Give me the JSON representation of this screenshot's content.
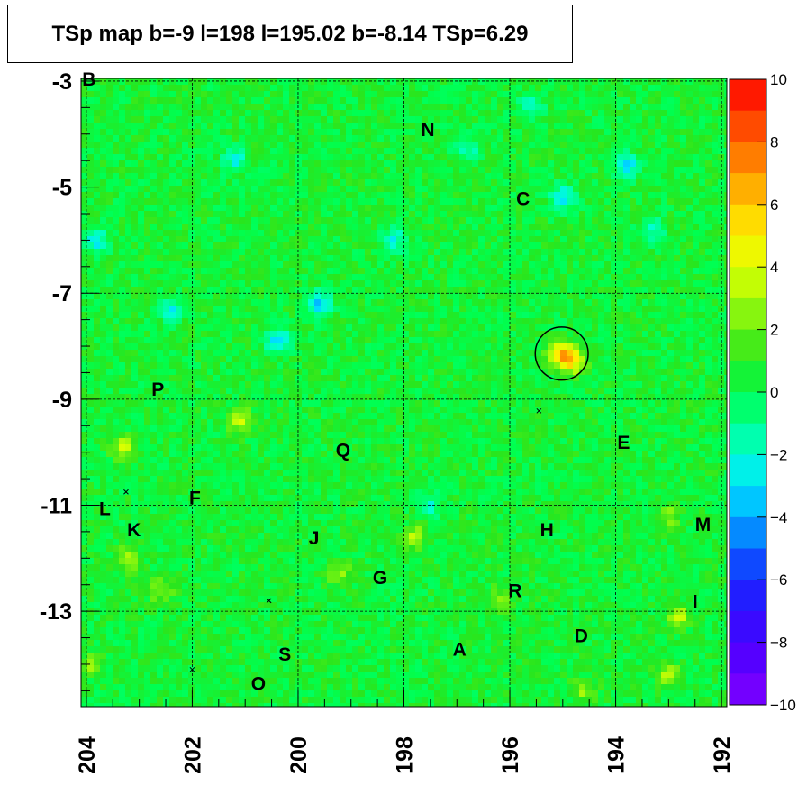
{
  "chart_data": {
    "type": "heatmap",
    "title": "TSp map b=-9 l=198 l=195.02 b=-8.14 TSp=6.29",
    "xlabel": "",
    "ylabel": "",
    "xlim": [
      204.1,
      191.9
    ],
    "ylim": [
      -14.8,
      -2.95
    ],
    "x_ticks": [
      204,
      202,
      200,
      198,
      196,
      194,
      192
    ],
    "y_ticks": [
      -3,
      -5,
      -7,
      -9,
      -11,
      -13
    ],
    "colorbar": {
      "min": -10,
      "max": 10,
      "ticks": [
        10,
        8,
        6,
        4,
        2,
        0,
        -2,
        -4,
        -6,
        -8,
        -10
      ]
    },
    "background_level": 0.5,
    "hotspots": [
      {
        "l": 195.02,
        "b": -8.14,
        "value": 6.29
      },
      {
        "l": 194.8,
        "b": -8.3,
        "value": 4.5
      },
      {
        "l": 201.1,
        "b": -9.4,
        "value": 3.8
      },
      {
        "l": 203.3,
        "b": -9.9,
        "value": 3.5
      },
      {
        "l": 203.2,
        "b": -12.0,
        "value": 3.2
      },
      {
        "l": 192.8,
        "b": -13.1,
        "value": 3.3
      },
      {
        "l": 197.8,
        "b": -11.6,
        "value": 3.0
      },
      {
        "l": 193.0,
        "b": -14.2,
        "value": 3.0
      },
      {
        "l": 196.2,
        "b": -12.8,
        "value": 2.8
      },
      {
        "l": 202.6,
        "b": -12.6,
        "value": 2.8
      },
      {
        "l": 194.6,
        "b": -14.5,
        "value": 2.6
      },
      {
        "l": 199.2,
        "b": -12.3,
        "value": 2.6
      },
      {
        "l": 193.0,
        "b": -11.2,
        "value": 2.5
      },
      {
        "l": 203.9,
        "b": -14.0,
        "value": 2.4
      }
    ],
    "coldspots": [
      {
        "l": 200.4,
        "b": -7.9,
        "value": -3.5
      },
      {
        "l": 199.6,
        "b": -7.2,
        "value": -3.4
      },
      {
        "l": 195.0,
        "b": -5.2,
        "value": -3.0
      },
      {
        "l": 193.8,
        "b": -4.6,
        "value": -3.0
      },
      {
        "l": 203.8,
        "b": -6.0,
        "value": -2.6
      },
      {
        "l": 198.2,
        "b": -6.0,
        "value": -2.4
      },
      {
        "l": 201.2,
        "b": -4.5,
        "value": -2.2
      },
      {
        "l": 202.4,
        "b": -7.3,
        "value": -2.2
      },
      {
        "l": 195.6,
        "b": -3.5,
        "value": -2.0
      },
      {
        "l": 193.3,
        "b": -5.8,
        "value": -2.0
      },
      {
        "l": 197.5,
        "b": -11.0,
        "value": -1.8
      },
      {
        "l": 196.8,
        "b": -4.3,
        "value": -1.6
      }
    ],
    "source_circle": {
      "l": 195.02,
      "b": -8.14,
      "radius_deg": 0.5
    },
    "markers": [
      {
        "l": 195.45,
        "b": -9.22
      },
      {
        "l": 203.25,
        "b": -10.75
      },
      {
        "l": 200.55,
        "b": -12.8
      },
      {
        "l": 202.0,
        "b": -14.1
      }
    ],
    "annotations": [
      {
        "label": "B",
        "l": 203.95,
        "b": -2.95
      },
      {
        "label": "N",
        "l": 197.55,
        "b": -3.9
      },
      {
        "label": "C",
        "l": 195.75,
        "b": -5.2
      },
      {
        "label": "P",
        "l": 202.65,
        "b": -8.8
      },
      {
        "label": "Q",
        "l": 199.15,
        "b": -9.95
      },
      {
        "label": "E",
        "l": 193.85,
        "b": -9.8
      },
      {
        "label": "L",
        "l": 203.65,
        "b": -11.05
      },
      {
        "label": "F",
        "l": 201.95,
        "b": -10.85
      },
      {
        "label": "K",
        "l": 203.1,
        "b": -11.45
      },
      {
        "label": "J",
        "l": 199.7,
        "b": -11.6
      },
      {
        "label": "H",
        "l": 195.3,
        "b": -11.45
      },
      {
        "label": "M",
        "l": 192.35,
        "b": -11.35
      },
      {
        "label": "G",
        "l": 198.45,
        "b": -12.35
      },
      {
        "label": "R",
        "l": 195.9,
        "b": -12.6
      },
      {
        "label": "I",
        "l": 192.5,
        "b": -12.8
      },
      {
        "label": "D",
        "l": 194.65,
        "b": -13.45
      },
      {
        "label": "A",
        "l": 196.95,
        "b": -13.7
      },
      {
        "label": "S",
        "l": 200.25,
        "b": -13.8
      },
      {
        "label": "O",
        "l": 200.75,
        "b": -14.35
      }
    ]
  }
}
